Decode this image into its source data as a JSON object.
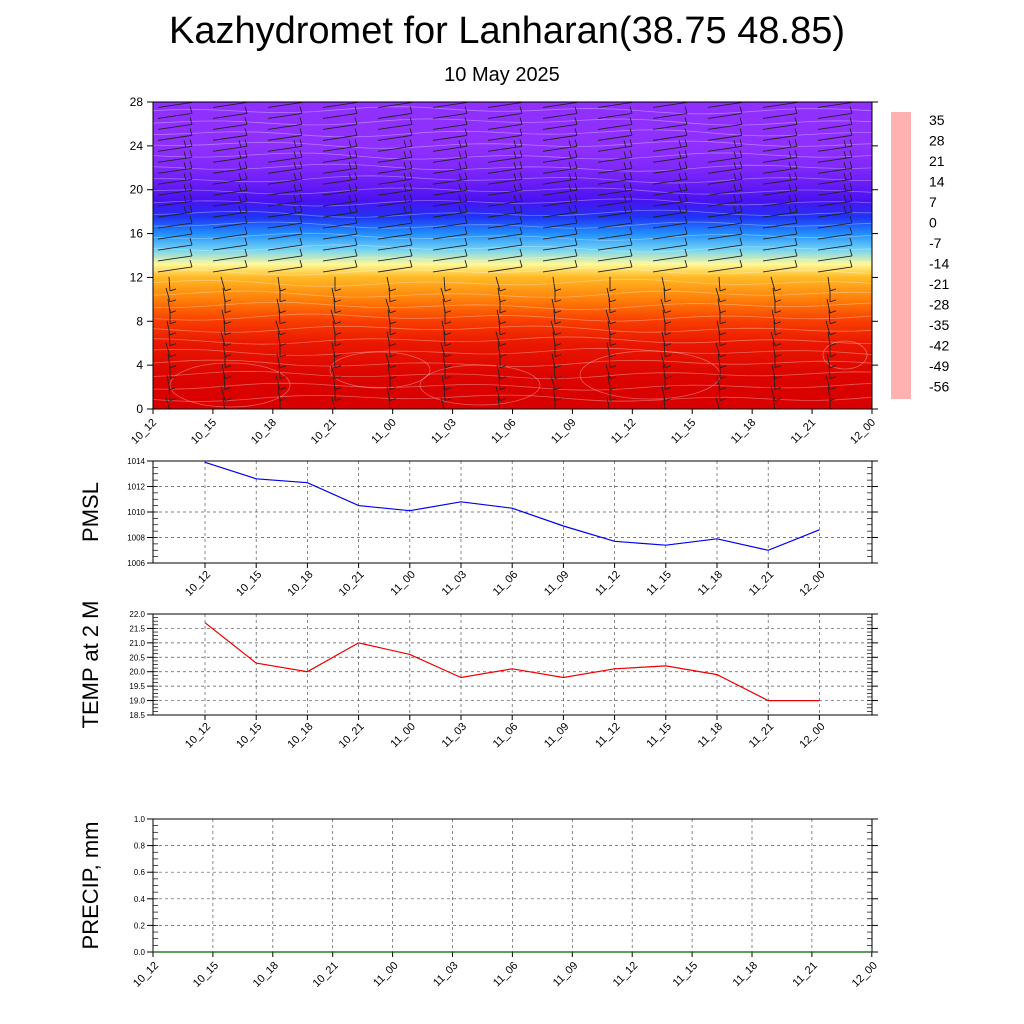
{
  "title": "Kazhydromet for Lanharan(38.75 48.85)",
  "subtitle": "10 May 2025",
  "chart_data": [
    {
      "type": "heatmap",
      "name": "cross-section",
      "x": [
        "10_12",
        "10_15",
        "10_18",
        "10_21",
        "11_00",
        "11_03",
        "11_06",
        "11_09",
        "11_12",
        "11_15",
        "11_18",
        "11_21",
        "12_00"
      ],
      "ylim": [
        0,
        28
      ],
      "yticks": [
        "0",
        "4",
        "8",
        "12",
        "16",
        "20",
        "24",
        "28"
      ],
      "colorbar": {
        "labels": [
          "35",
          "28",
          "21",
          "14",
          "7",
          "0",
          "-7",
          "-14",
          "-21",
          "-28",
          "-35",
          "-42",
          "-49",
          "-56"
        ],
        "stops": [
          {
            "v": 38,
            "c": "#ffb0b0"
          },
          {
            "v": 33,
            "c": "#ee2222"
          },
          {
            "v": 28,
            "c": "#d80000"
          },
          {
            "v": 20,
            "c": "#f02000"
          },
          {
            "v": 12,
            "c": "#ff5a00"
          },
          {
            "v": 5,
            "c": "#ff9a10"
          },
          {
            "v": -1,
            "c": "#ffc830"
          },
          {
            "v": -7,
            "c": "#fff070"
          },
          {
            "v": -12,
            "c": "#ffffb0"
          },
          {
            "v": -15,
            "c": "#b8e8f8"
          },
          {
            "v": -21,
            "c": "#50c8f0"
          },
          {
            "v": -28,
            "c": "#20a0ff"
          },
          {
            "v": -35,
            "c": "#2060ff"
          },
          {
            "v": -45,
            "c": "#2020f0"
          },
          {
            "v": -52,
            "c": "#5010f0"
          },
          {
            "v": -60,
            "c": "#9030ff"
          }
        ]
      },
      "profile": [
        {
          "h": 0,
          "t": 28
        },
        {
          "h": 3,
          "t": 27
        },
        {
          "h": 6,
          "t": 22
        },
        {
          "h": 8,
          "t": 16
        },
        {
          "h": 10,
          "t": 8
        },
        {
          "h": 12,
          "t": 1
        },
        {
          "h": 13.2,
          "t": -10
        },
        {
          "h": 14.5,
          "t": -19
        },
        {
          "h": 16,
          "t": -30
        },
        {
          "h": 17.5,
          "t": -42
        },
        {
          "h": 19,
          "t": -51
        },
        {
          "h": 20.5,
          "t": -55
        },
        {
          "h": 22,
          "t": -58
        },
        {
          "h": 24,
          "t": -60
        },
        {
          "h": 28,
          "t": -61
        }
      ]
    },
    {
      "type": "line",
      "name": "pmsl",
      "ylabel": "PMSL",
      "x": [
        "10_12",
        "10_15",
        "10_18",
        "10_21",
        "11_00",
        "11_03",
        "11_06",
        "11_09",
        "11_12",
        "11_15",
        "11_18",
        "11_21",
        "12_00"
      ],
      "values": [
        1013.9,
        1012.6,
        1012.3,
        1010.5,
        1010.1,
        1010.8,
        1010.3,
        1008.9,
        1007.7,
        1007.4,
        1007.9,
        1007.0,
        1008.6
      ],
      "ylim": [
        1006,
        1014
      ],
      "yticks": [
        "1006",
        "1008",
        "1010",
        "1012",
        "1014"
      ],
      "color": "#0000ee",
      "grid": true
    },
    {
      "type": "line",
      "name": "temp2m",
      "ylabel": "TEMP at 2 M",
      "x": [
        "10_12",
        "10_15",
        "10_18",
        "10_21",
        "11_00",
        "11_03",
        "11_06",
        "11_09",
        "11_12",
        "11_15",
        "11_18",
        "11_21",
        "12_00"
      ],
      "values": [
        21.7,
        20.3,
        20.0,
        21.0,
        20.6,
        19.8,
        20.1,
        19.8,
        20.1,
        20.2,
        19.9,
        19.0,
        19.0
      ],
      "ylim": [
        18.5,
        22.0
      ],
      "yticks": [
        "18.5",
        "19.0",
        "19.5",
        "20.0",
        "20.5",
        "21.0",
        "21.5",
        "22.0"
      ],
      "color": "#ee0000",
      "grid": true
    },
    {
      "type": "line",
      "name": "precip",
      "ylabel": "PRECIP, mm",
      "x": [
        "10_12",
        "10_15",
        "10_18",
        "10_21",
        "11_00",
        "11_03",
        "11_06",
        "11_09",
        "11_12",
        "11_15",
        "11_18",
        "11_21",
        "12_00"
      ],
      "values": [
        0,
        0,
        0,
        0,
        0,
        0,
        0,
        0,
        0,
        0,
        0,
        0,
        0
      ],
      "ylim": [
        0,
        1.0
      ],
      "yticks": [
        "0.0",
        "0.2",
        "0.4",
        "0.6",
        "0.8",
        "1.0"
      ],
      "color": "#006400",
      "grid": true
    }
  ]
}
